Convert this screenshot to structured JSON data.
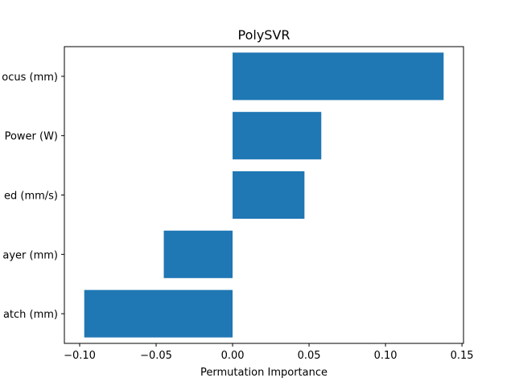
{
  "chart_data": {
    "type": "bar",
    "orientation": "horizontal",
    "title": "PolySVR",
    "xlabel": "Permutation Importance",
    "ylabel": "",
    "categories": [
      "ocus (mm)",
      "Power (W)",
      "ed (mm/s)",
      "ayer (mm)",
      "atch (mm)"
    ],
    "values": [
      0.138,
      0.058,
      0.047,
      -0.045,
      -0.097
    ],
    "xlim": [
      -0.11,
      0.151
    ],
    "xticks": [
      -0.1,
      -0.05,
      0.0,
      0.05,
      0.1,
      0.15
    ],
    "xtick_labels": [
      "−0.10",
      "−0.05",
      "0.00",
      "0.05",
      "0.10",
      "0.15"
    ],
    "grid": false,
    "bar_color": "#1f77b4"
  }
}
